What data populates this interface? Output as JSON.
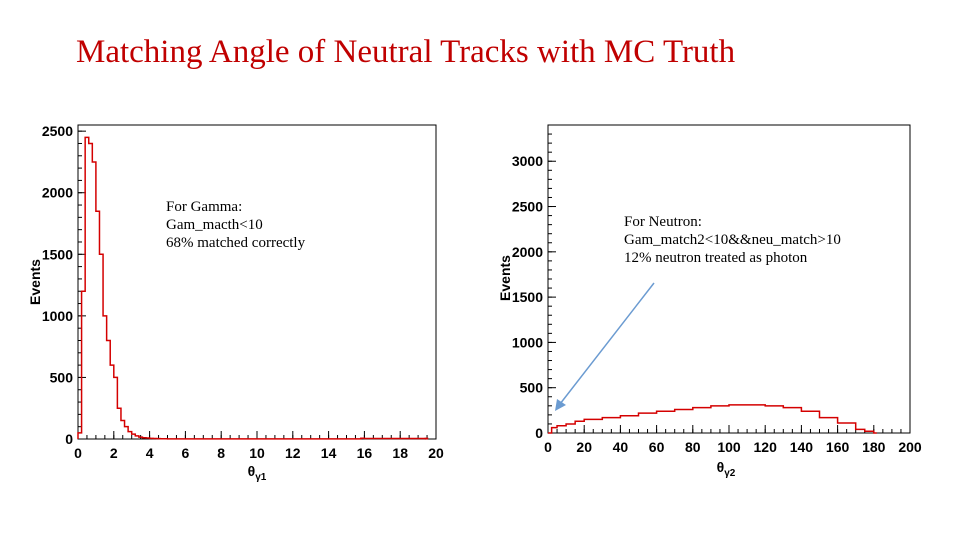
{
  "slide": {
    "title": "Matching Angle of Neutral Tracks with MC Truth"
  },
  "colors": {
    "title": "#c00000",
    "histogram": "#d40000",
    "arrow": "#6b9bd1",
    "axis": "#000000"
  },
  "chart_data": [
    {
      "type": "histogram",
      "ylabel": "Events",
      "xlabel_main": "θ",
      "xlabel_sub": "γ1",
      "xlim": [
        0,
        20
      ],
      "ylim": [
        0,
        2550
      ],
      "xticks": [
        0,
        2,
        4,
        6,
        8,
        10,
        12,
        14,
        16,
        18,
        20
      ],
      "yticks": [
        0,
        500,
        1000,
        1500,
        2000,
        2500
      ],
      "grid": false,
      "x": [
        0.0,
        0.2,
        0.4,
        0.6,
        0.8,
        1.0,
        1.2,
        1.4,
        1.6,
        1.8,
        2.0,
        2.2,
        2.4,
        2.6,
        2.8,
        3.0,
        3.2,
        3.4,
        3.6,
        3.8,
        4.0,
        4.2,
        4.4,
        4.6,
        4.8,
        5.0,
        15.8,
        16.0,
        19.4
      ],
      "y": [
        50,
        1200,
        2450,
        2400,
        2250,
        1850,
        1500,
        1000,
        800,
        600,
        500,
        250,
        150,
        100,
        60,
        40,
        25,
        15,
        10,
        8,
        5,
        4,
        3,
        2,
        2,
        1,
        6,
        4,
        5
      ],
      "annotation": [
        "For Gamma:",
        "Gam_macth<10",
        "68% matched correctly"
      ]
    },
    {
      "type": "histogram",
      "ylabel": "Events",
      "xlabel_main": "θ",
      "xlabel_sub": "γ2",
      "xlim": [
        0,
        200
      ],
      "ylim": [
        0,
        3400
      ],
      "xticks": [
        0,
        20,
        40,
        60,
        80,
        100,
        120,
        140,
        160,
        180,
        200
      ],
      "yticks": [
        0,
        500,
        1000,
        1500,
        2000,
        2500,
        3000
      ],
      "grid": false,
      "x": [
        0,
        2,
        5,
        10,
        15,
        20,
        30,
        40,
        50,
        60,
        70,
        80,
        90,
        100,
        110,
        120,
        130,
        140,
        150,
        160,
        170,
        175,
        180
      ],
      "y": [
        0,
        60,
        80,
        100,
        130,
        150,
        170,
        190,
        220,
        240,
        260,
        280,
        300,
        310,
        310,
        300,
        280,
        240,
        170,
        110,
        40,
        20,
        0
      ],
      "annotation": [
        "For Neutron:",
        "Gam_match2<10&&neu_match>10",
        "12% neutron treated as photon"
      ]
    }
  ]
}
